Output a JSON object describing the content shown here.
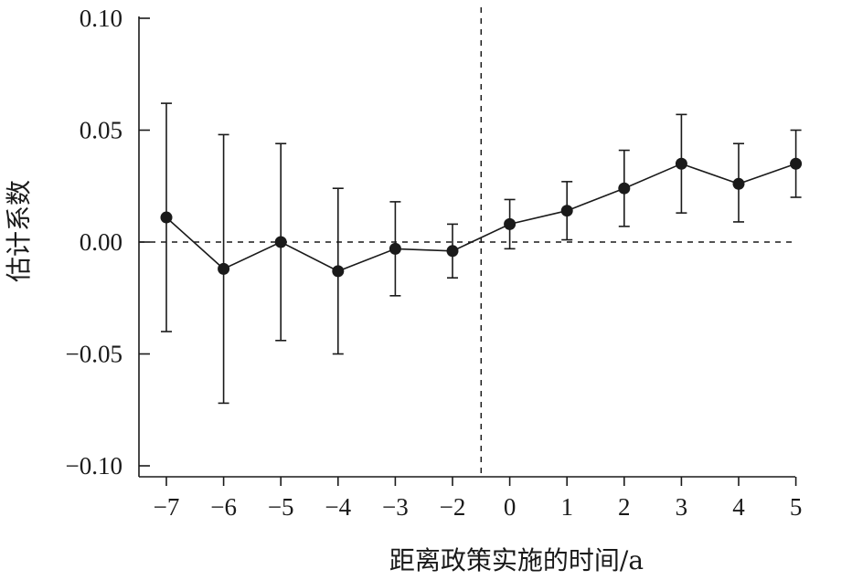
{
  "chart_data": {
    "type": "line",
    "title": "",
    "xlabel": "距离政策实施的时间/a",
    "ylabel": "估计系数",
    "categories": [
      "−7",
      "−6",
      "−5",
      "−4",
      "−3",
      "−2",
      "0",
      "1",
      "2",
      "3",
      "4",
      "5"
    ],
    "x": [
      -7,
      -6,
      -5,
      -4,
      -3,
      -2,
      0,
      1,
      2,
      3,
      4,
      5
    ],
    "series": [
      {
        "values": [
          0.011,
          -0.012,
          0.0,
          -0.013,
          -0.003,
          -0.004,
          0.008,
          0.014,
          0.024,
          0.035,
          0.026,
          0.035
        ],
        "error_lower": [
          -0.04,
          -0.072,
          -0.044,
          -0.05,
          -0.024,
          -0.016,
          -0.003,
          0.001,
          0.007,
          0.013,
          0.009,
          0.02
        ],
        "error_upper": [
          0.062,
          0.048,
          0.044,
          0.024,
          0.018,
          0.008,
          0.019,
          0.027,
          0.041,
          0.057,
          0.044,
          0.05
        ]
      }
    ],
    "yticks": [
      0.1,
      0.05,
      0.0,
      -0.05,
      -0.1
    ],
    "ytick_labels": [
      "0.10",
      "0.05",
      "0.00",
      "−0.05",
      "−0.10"
    ],
    "ylim": [
      -0.105,
      0.1
    ],
    "reference_lines": {
      "horizontal_y": 0.0,
      "vertical_between": [
        "−2",
        "0"
      ]
    },
    "grid": false,
    "legend": "none",
    "colors": {
      "series": "#1a1a1a",
      "reference": "#1a1a1a"
    }
  }
}
